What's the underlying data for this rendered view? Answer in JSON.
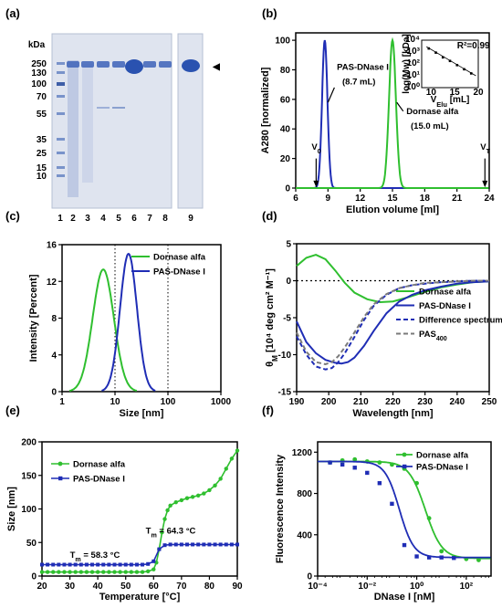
{
  "panel_labels": [
    "(a)",
    "(b)",
    "(c)",
    "(d)",
    "(e)",
    "(f)"
  ],
  "gel": {
    "unit_label": "kDa",
    "markers": [
      "250",
      "130",
      "100",
      "70",
      "55",
      "35",
      "25",
      "15",
      "10"
    ],
    "lanes_left": [
      "1",
      "2",
      "3",
      "4",
      "5",
      "6",
      "7",
      "8"
    ],
    "lane_right": "9",
    "arrow_symbol": "◀"
  },
  "chart_data": [
    {
      "panel": "b",
      "type": "line",
      "xlabel": "Elution volume [ml]",
      "ylabel": "A280 [normalized]",
      "xlim": [
        6,
        24
      ],
      "ylim": [
        0,
        105
      ],
      "xticks": [
        6,
        9,
        12,
        15,
        18,
        21,
        24
      ],
      "yticks": [
        0,
        20,
        40,
        60,
        80,
        100
      ],
      "series": [
        {
          "name": "PAS-DNase I",
          "color": "#1f2db5",
          "peak_x": 8.7,
          "peak_y": 100,
          "width": 0.25
        },
        {
          "name": "Dornase alfa",
          "color": "#2fbf2f",
          "peak_x": 15.0,
          "peak_y": 100,
          "width": 0.32
        }
      ],
      "annotations": [
        {
          "text": "PAS-DNase I",
          "x": 10.0,
          "y": 80
        },
        {
          "text": "(8.7 mL)",
          "x": 10.5,
          "y": 70
        },
        {
          "text": "Dornase alfa",
          "x": 16.3,
          "y": 50
        },
        {
          "text": "(15.0 mL)",
          "x": 16.7,
          "y": 40
        }
      ],
      "markers": [
        {
          "text": "V",
          "sub": "0",
          "x": 7.9
        },
        {
          "text": "V",
          "sub": "T",
          "x": 23.6
        }
      ],
      "inset": {
        "type": "scatter",
        "xlabel": "V",
        "xlabel_sub": "Elu",
        "xlabel_unit": " [mL]",
        "ylabel": "log(Mw) [kDa]",
        "xlim": [
          8,
          20
        ],
        "xticks": [
          10,
          15,
          20
        ],
        "ylim": [
          0,
          4
        ],
        "ytick_labels": [
          "10⁰",
          "10¹",
          "10²",
          "10³",
          "10⁴"
        ],
        "x": [
          9.5,
          11,
          12.5,
          14,
          15.5,
          17,
          18.5
        ],
        "y": [
          3.3,
          2.95,
          2.55,
          2.25,
          1.9,
          1.55,
          1.2
        ],
        "r2_label": "R²=0.99"
      }
    },
    {
      "panel": "c",
      "type": "line",
      "xlabel": "Size [nm]",
      "ylabel": "Intensity [Percent]",
      "xscale": "log",
      "xlim": [
        1,
        1000
      ],
      "ylim": [
        0,
        16
      ],
      "xticks": [
        1,
        10,
        100,
        1000
      ],
      "yticks": [
        0,
        4,
        8,
        12,
        16
      ],
      "vlines": [
        10,
        100,
        1000
      ],
      "series": [
        {
          "name": "Dornase alfa",
          "color": "#2fbf2f",
          "peak_x": 6.0,
          "peak_y": 13.3,
          "sigma_log": 0.2
        },
        {
          "name": "PAS-DNase I",
          "color": "#1f2db5",
          "peak_x": 18.0,
          "peak_y": 15.0,
          "sigma_log": 0.16
        }
      ]
    },
    {
      "panel": "d",
      "type": "line",
      "xlabel": "Wavelength [nm]",
      "ylabel": "θM [10⁴ deg cm² M⁻¹]",
      "ylabel_main": "θ",
      "ylabel_sub": "M",
      "ylabel_rest": " [10⁴ deg cm² M⁻¹]",
      "xlim": [
        190,
        250
      ],
      "ylim": [
        -15,
        5
      ],
      "xticks": [
        190,
        200,
        210,
        220,
        230,
        240,
        250
      ],
      "yticks": [
        -15,
        -10,
        -5,
        0,
        5
      ],
      "series": [
        {
          "name": "Dornase alfa",
          "color": "#2fbf2f",
          "dash": "solid",
          "x": [
            190,
            193,
            196,
            199,
            202,
            205,
            208,
            212,
            216,
            220,
            225,
            230,
            235,
            240,
            245,
            250
          ],
          "y": [
            2.0,
            3.1,
            3.5,
            2.9,
            1.4,
            -0.3,
            -1.6,
            -2.5,
            -2.9,
            -2.8,
            -2.2,
            -1.5,
            -0.9,
            -0.5,
            -0.2,
            -0.1
          ]
        },
        {
          "name": "PAS-DNase I",
          "color": "#1f2db5",
          "dash": "solid",
          "x": [
            190,
            193,
            196,
            199,
            202,
            204,
            206,
            208,
            211,
            214,
            218,
            222,
            226,
            230,
            235,
            240,
            245,
            250
          ],
          "y": [
            -5.5,
            -8.3,
            -9.8,
            -10.7,
            -11.1,
            -11.2,
            -11.0,
            -10.4,
            -8.8,
            -6.8,
            -4.4,
            -2.8,
            -1.9,
            -1.3,
            -0.8,
            -0.4,
            -0.2,
            -0.1
          ]
        },
        {
          "name": "Difference spectrum",
          "color": "#1f2db5",
          "dash": "dashed",
          "x": [
            190,
            193,
            196,
            199,
            201,
            203,
            205,
            208,
            211,
            214,
            218,
            222,
            226,
            230,
            235,
            240,
            245,
            250
          ],
          "y": [
            -7.5,
            -10.0,
            -11.6,
            -12.0,
            -11.8,
            -11.0,
            -9.8,
            -7.6,
            -5.3,
            -3.4,
            -1.9,
            -1.0,
            -0.6,
            -0.4,
            -0.2,
            -0.1,
            0,
            0
          ]
        },
        {
          "name": "PAS400",
          "name_main": "PAS",
          "name_sub": "400",
          "color": "#7a7a7a",
          "dash": "dashed",
          "x": [
            190,
            193,
            196,
            199,
            201,
            203,
            205,
            208,
            211,
            214,
            218,
            222,
            226,
            230,
            235,
            240,
            245,
            250
          ],
          "y": [
            -7.0,
            -9.6,
            -11.0,
            -11.3,
            -11.0,
            -10.2,
            -9.0,
            -7.0,
            -4.9,
            -3.2,
            -1.8,
            -1.0,
            -0.6,
            -0.3,
            -0.2,
            -0.1,
            0,
            0
          ]
        }
      ]
    },
    {
      "panel": "e",
      "type": "line",
      "xlabel": "Temperature [°C]",
      "ylabel": "Size [nm]",
      "xlim": [
        20,
        90
      ],
      "ylim": [
        0,
        200
      ],
      "xticks": [
        20,
        30,
        40,
        50,
        60,
        70,
        80,
        90
      ],
      "yticks": [
        0,
        50,
        100,
        150,
        200
      ],
      "series": [
        {
          "name": "Dornase alfa",
          "color": "#2fbf2f",
          "marker": "circle",
          "x": [
            20,
            22,
            24,
            26,
            28,
            30,
            32,
            34,
            36,
            38,
            40,
            42,
            44,
            46,
            48,
            50,
            52,
            54,
            56,
            58,
            60,
            61,
            62,
            63,
            64,
            65,
            66,
            68,
            70,
            72,
            74,
            76,
            78,
            80,
            82,
            84,
            86,
            88,
            90
          ],
          "y": [
            6,
            6,
            6,
            6,
            6,
            6,
            6,
            6,
            6,
            6,
            6,
            6,
            6,
            6,
            6,
            6,
            6,
            6,
            6,
            7,
            10,
            20,
            40,
            65,
            85,
            98,
            105,
            110,
            113,
            116,
            118,
            120,
            123,
            128,
            135,
            145,
            160,
            175,
            187
          ]
        },
        {
          "name": "PAS-DNase I",
          "color": "#1f2db5",
          "marker": "square",
          "x": [
            20,
            22,
            24,
            26,
            28,
            30,
            32,
            34,
            36,
            38,
            40,
            42,
            44,
            46,
            48,
            50,
            52,
            54,
            56,
            58,
            60,
            62,
            64,
            66,
            68,
            70,
            72,
            74,
            76,
            78,
            80,
            82,
            84,
            86,
            88,
            90
          ],
          "y": [
            17,
            17,
            17,
            17,
            17,
            17,
            17,
            17,
            17,
            17,
            17,
            17,
            17,
            17,
            17,
            17,
            17,
            17,
            17,
            18,
            22,
            40,
            46,
            47,
            47,
            47,
            47,
            47,
            47,
            47,
            47,
            47,
            47,
            47,
            47,
            47
          ]
        }
      ],
      "annotations": [
        {
          "text_main": "T",
          "text_sub": "m",
          "text_rest": " = 64.3 °C",
          "x": 66,
          "y": 63
        },
        {
          "text_main": "T",
          "text_sub": "m",
          "text_rest": " = 58.3 °C",
          "x": 30,
          "y": 27
        }
      ]
    },
    {
      "panel": "f",
      "type": "scatter",
      "xlabel": "DNase I [nM]",
      "ylabel": "Fluorescence Intensity",
      "xscale": "log",
      "xlim": [
        -4,
        3
      ],
      "ylim": [
        0,
        1300
      ],
      "xtick_labels": [
        "10⁻⁴",
        "10⁻²",
        "10⁰",
        "10²"
      ],
      "xtick_pos": [
        -4,
        -2,
        0,
        2
      ],
      "yticks": [
        0,
        400,
        800,
        1200
      ],
      "series": [
        {
          "name": "Dornase alfa",
          "color": "#2fbf2f",
          "marker": "circle",
          "top": 1110,
          "bottom": 170,
          "logIC50": 0.35,
          "hill": 1.3,
          "x": [
            -3.5,
            -3.0,
            -2.5,
            -2.0,
            -1.5,
            -1.0,
            -0.5,
            0.0,
            0.5,
            1.0,
            1.5,
            2.0,
            2.5
          ],
          "y": [
            1100,
            1120,
            1130,
            1110,
            1100,
            1080,
            1040,
            900,
            560,
            240,
            180,
            165,
            155
          ]
        },
        {
          "name": "PAS-DNase I",
          "color": "#1f2db5",
          "marker": "square",
          "top": 1110,
          "bottom": 180,
          "logIC50": -0.7,
          "hill": 1.5,
          "x": [
            -3.5,
            -3.0,
            -2.5,
            -2.0,
            -1.5,
            -1.0,
            -0.5,
            0.0,
            0.5,
            1.0,
            1.5
          ],
          "y": [
            1100,
            1080,
            1050,
            1000,
            900,
            700,
            300,
            190,
            180,
            180,
            175
          ]
        }
      ]
    }
  ]
}
